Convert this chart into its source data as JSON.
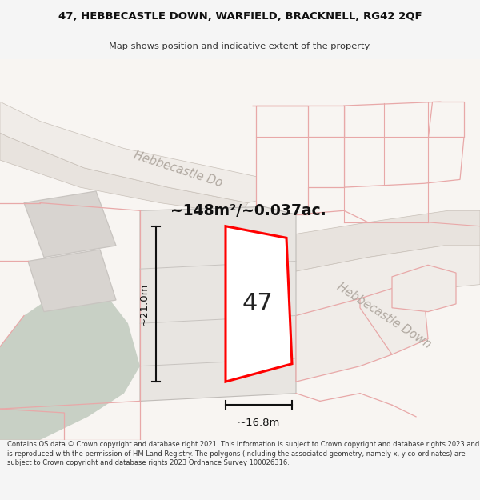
{
  "title_line1": "47, HEBBECASTLE DOWN, WARFIELD, BRACKNELL, RG42 2QF",
  "title_line2": "Map shows position and indicative extent of the property.",
  "area_text": "~148m²/~0.037ac.",
  "label_47": "47",
  "dim_height": "~21.0m",
  "dim_width": "~16.8m",
  "footer_text": "Contains OS data © Crown copyright and database right 2021. This information is subject to Crown copyright and database rights 2023 and is reproduced with the permission of HM Land Registry. The polygons (including the associated geometry, namely x, y co-ordinates) are subject to Crown copyright and database rights 2023 Ordnance Survey 100026316.",
  "bg_color": "#f5f5f5",
  "map_bg": "#f0eeeb",
  "plot_fill": "#ffffff",
  "plot_edge": "#ff0000",
  "road_fill": "#e8e3de",
  "gray_plot": "#d8d4cf",
  "light_gray_plot": "#e2deda",
  "green_area": "#c8d0c5",
  "pink_line": "#e8a8a8",
  "dim_color": "#111111",
  "road_text_color": "#b0a8a0",
  "area_text_color": "#111111"
}
